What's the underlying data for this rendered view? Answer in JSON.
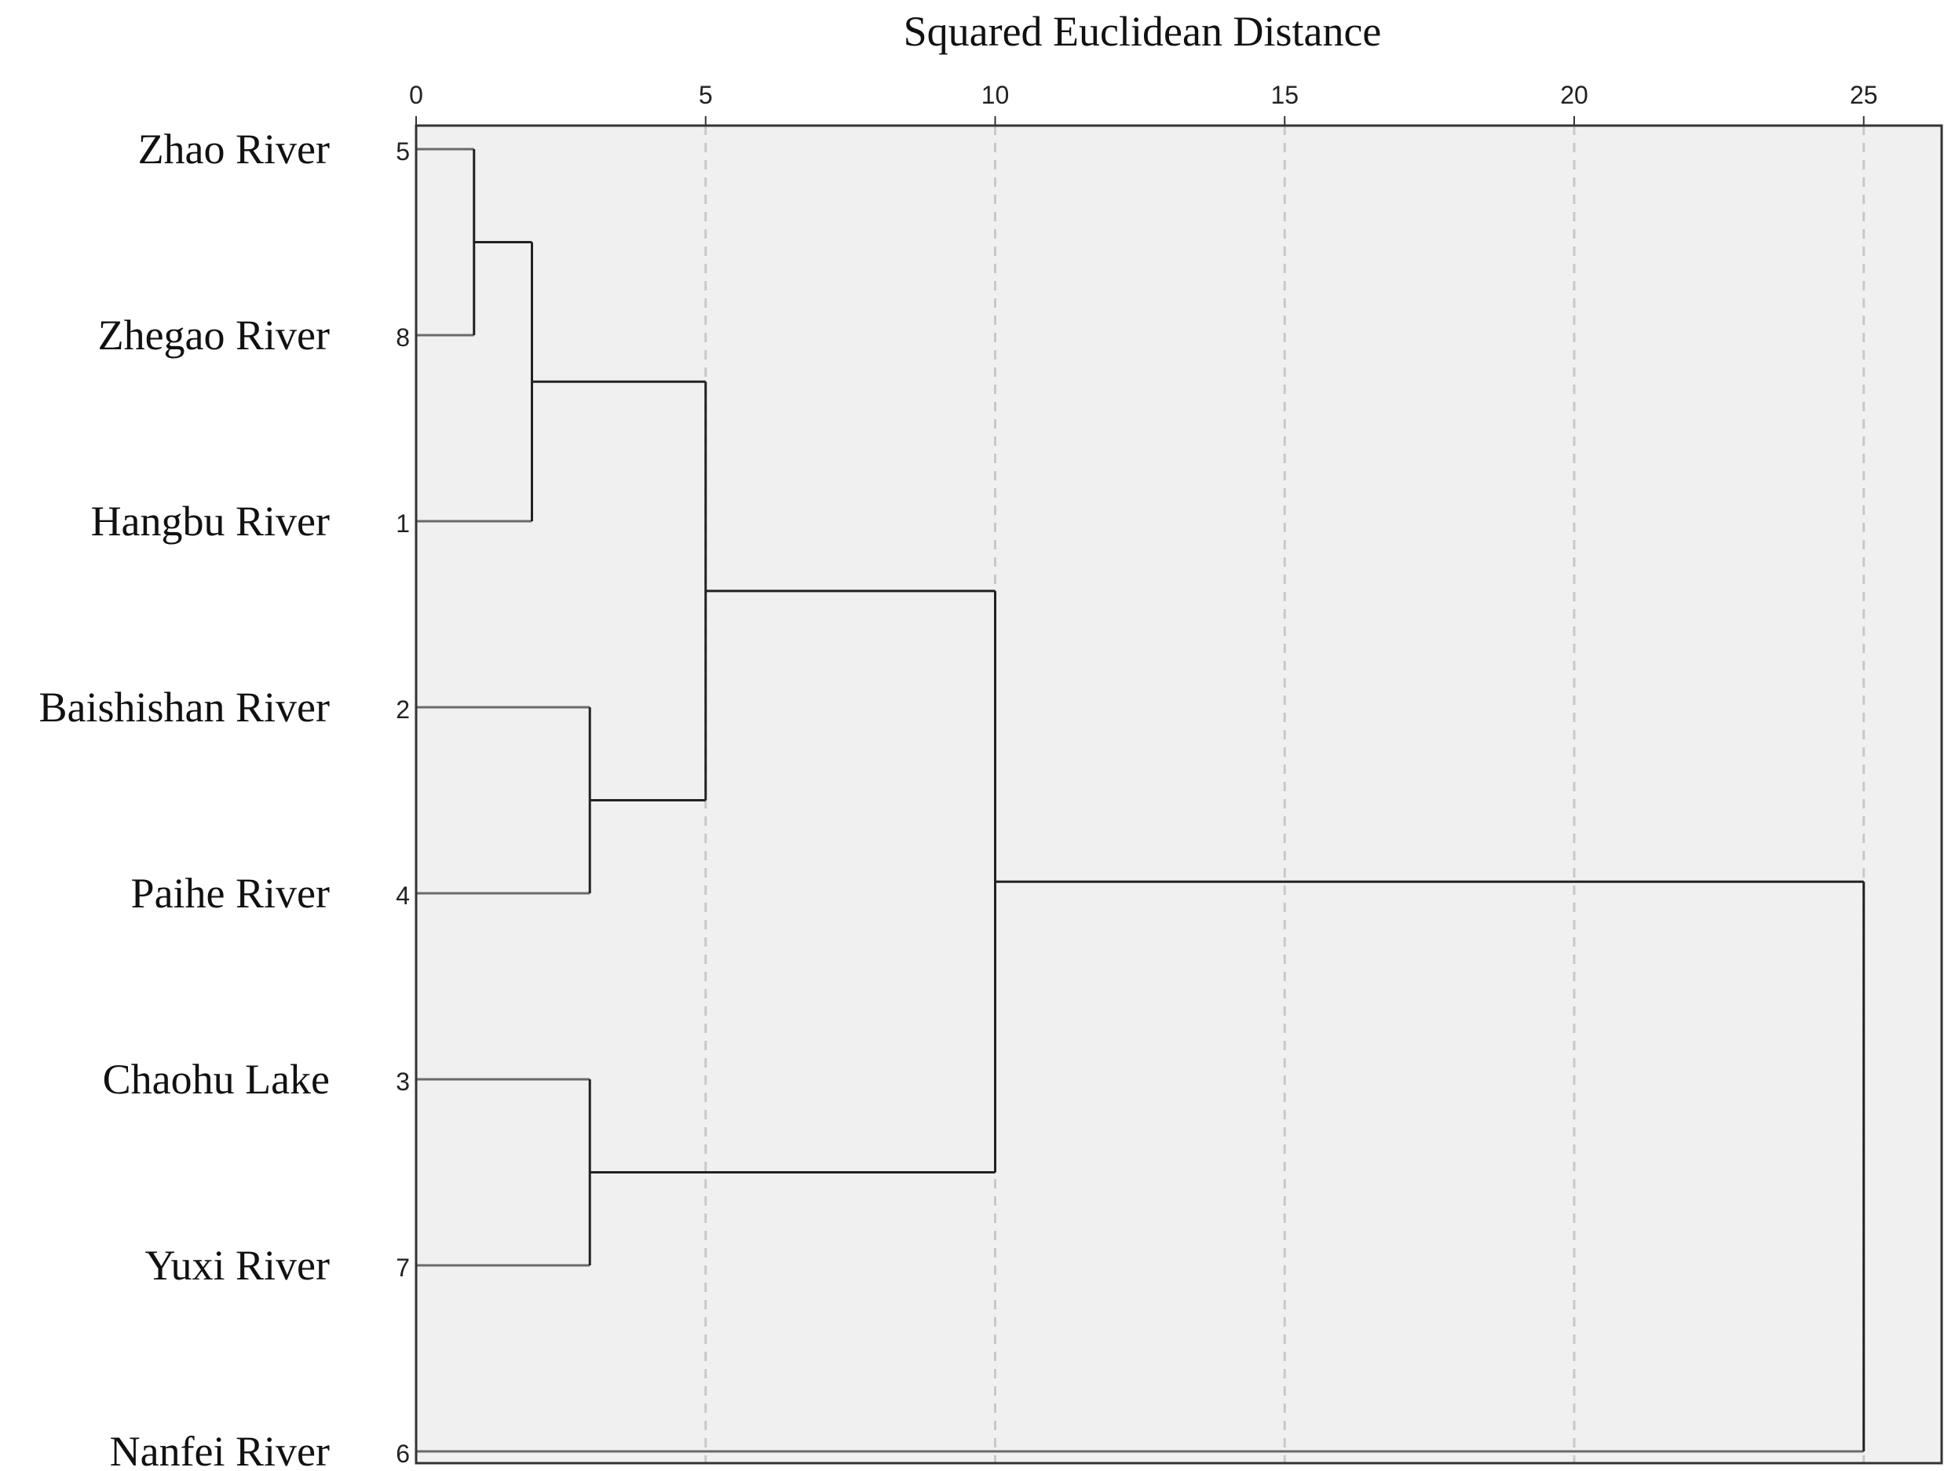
{
  "chart_data": {
    "type": "dendrogram",
    "title": "",
    "xlabel": "Squared Euclidean Distance",
    "xlim": [
      0,
      26.3
    ],
    "x_ticks": [
      0,
      5,
      10,
      15,
      20,
      25
    ],
    "grid": true,
    "leaves": [
      {
        "name": "Zhao River",
        "id": "5"
      },
      {
        "name": "Zhegao River",
        "id": "8"
      },
      {
        "name": "Hangbu River",
        "id": "1"
      },
      {
        "name": "Baishishan River",
        "id": "2"
      },
      {
        "name": "Paihe River",
        "id": "4"
      },
      {
        "name": "Chaohu Lake",
        "id": "3"
      },
      {
        "name": "Yuxi River",
        "id": "7"
      },
      {
        "name": "Nanfei River",
        "id": "6"
      }
    ],
    "merges": [
      {
        "a": "L0",
        "b": "L1",
        "distance": 1
      },
      {
        "a": "M0",
        "b": "L2",
        "distance": 2
      },
      {
        "a": "L3",
        "b": "L4",
        "distance": 3
      },
      {
        "a": "L5",
        "b": "L6",
        "distance": 3
      },
      {
        "a": "M1",
        "b": "M2",
        "distance": 5
      },
      {
        "a": "M4",
        "b": "M3",
        "distance": 10
      },
      {
        "a": "M5",
        "b": "L7",
        "distance": 25
      }
    ],
    "colors": {
      "background": "#f0f0f0",
      "frame": "#333333",
      "link": "#222222",
      "link_leaf": "#6a6a6a",
      "grid": "#c8c8c8"
    }
  }
}
